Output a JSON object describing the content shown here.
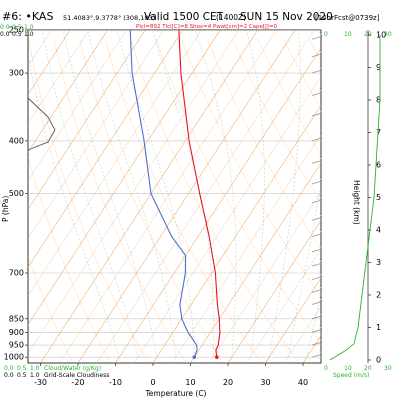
{
  "header": {
    "station": "#6: •KAS",
    "coords": "51.4083°,9.3778° (308,183)",
    "valid": "Valid 1500 CET",
    "utc": "(1400Z)",
    "date": "SUN 15 Nov 2020",
    "forecast": "[14hrFcst@0739z]",
    "params": "Plcl=892 Tlcl[C]=8 Shox=4 Pwat[cm]=2 Cape[J]=0"
  },
  "chart_data": {
    "type": "skew-t",
    "xlabel": "Temperature (C)",
    "ylabel": "P (hPa)",
    "right_label": "Height (km)",
    "x_ticks": [
      -30,
      -20,
      -10,
      0,
      10,
      20,
      30,
      40
    ],
    "p_ticks": [
      250,
      300,
      400,
      500,
      700,
      850,
      900,
      950,
      1000
    ],
    "height_ticks": [
      0,
      1,
      2,
      3,
      4,
      5,
      6,
      7,
      8,
      9,
      10
    ],
    "temperature": [
      {
        "p": 1000,
        "t": 16
      },
      {
        "p": 970,
        "t": 14.5
      },
      {
        "p": 950,
        "t": 14.3
      },
      {
        "p": 900,
        "t": 12.5
      },
      {
        "p": 850,
        "t": 10
      },
      {
        "p": 800,
        "t": 7
      },
      {
        "p": 700,
        "t": 1
      },
      {
        "p": 600,
        "t": -7
      },
      {
        "p": 500,
        "t": -17
      },
      {
        "p": 400,
        "t": -29
      },
      {
        "p": 300,
        "t": -43
      },
      {
        "p": 250,
        "t": -51
      }
    ],
    "dewpoint": [
      {
        "p": 1000,
        "t": 10
      },
      {
        "p": 970,
        "t": 9.5
      },
      {
        "p": 950,
        "t": 8.5
      },
      {
        "p": 900,
        "t": 4
      },
      {
        "p": 850,
        "t": 0
      },
      {
        "p": 800,
        "t": -3
      },
      {
        "p": 700,
        "t": -7
      },
      {
        "p": 650,
        "t": -10
      },
      {
        "p": 600,
        "t": -17
      },
      {
        "p": 500,
        "t": -30
      },
      {
        "p": 400,
        "t": -41
      },
      {
        "p": 300,
        "t": -56
      },
      {
        "p": 250,
        "t": -64
      }
    ],
    "labels": {
      "cloud_water": "Cloud/Water (g/Kg)",
      "grid_cloud": "Grid-Scale Cloudiness",
      "speed": "Speed (m/s)",
      "cw_ticks": [
        "0.0",
        "0.5",
        "1.0"
      ],
      "gs_ticks": [
        "0.0",
        "0.5",
        "1.0"
      ],
      "speed_ticks": [
        "0",
        "10",
        "20",
        "30"
      ]
    },
    "colors": {
      "temperature": "#e8141e",
      "dewpoint": "#4a6fd6",
      "isotherm": "#f5a35a",
      "cloud": "#2ab22a",
      "wind": "#999999"
    }
  }
}
